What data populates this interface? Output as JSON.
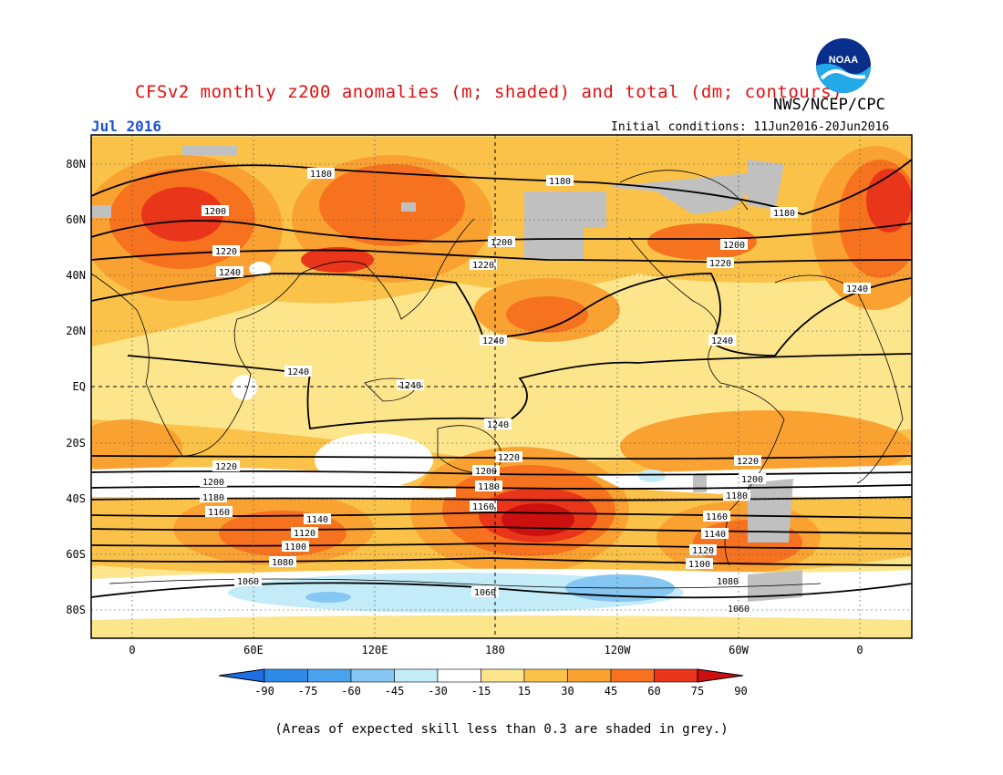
{
  "header": {
    "title": "CFSv2 monthly z200 anomalies (m; shaded) and total (dm; contours)",
    "center": "NWS/NCEP/CPC",
    "month": "Jul 2016",
    "initial_conditions": "Initial conditions: 11Jun2016-20Jun2016",
    "logo_text": "NOAA"
  },
  "axes": {
    "lat_labels": [
      "80N",
      "60N",
      "40N",
      "20N",
      "EQ",
      "20S",
      "40S",
      "60S",
      "80S"
    ],
    "lon_labels": [
      "0",
      "60E",
      "120E",
      "180",
      "120W",
      "60W",
      "0"
    ]
  },
  "colorbar": {
    "tick_labels": [
      "-90",
      "-75",
      "-60",
      "-45",
      "-30",
      "-15",
      "15",
      "30",
      "45",
      "60",
      "75",
      "90"
    ],
    "colors": [
      "#1e6ee6",
      "#2f8ae6",
      "#4ba2ec",
      "#86c6f2",
      "#c4ecf8",
      "#ffffff",
      "#fde58c",
      "#fbc24a",
      "#f9a232",
      "#f7721e",
      "#e9351a",
      "#cc1010"
    ],
    "skill_grey": "#c0c0c0"
  },
  "contour_labels": [
    "1180",
    "1200",
    "1220",
    "1240",
    "1200",
    "1220",
    "1240",
    "1180",
    "1180",
    "1200",
    "1220",
    "1240",
    "1240",
    "1240",
    "1240",
    "1240",
    "1220",
    "1220",
    "1200",
    "1200",
    "1180",
    "1180",
    "1160",
    "1160",
    "1140",
    "1120",
    "1100",
    "1080",
    "1060",
    "1220",
    "1200",
    "1180",
    "1160",
    "1140",
    "1120",
    "1100",
    "1080",
    "1060",
    "1060"
  ],
  "footnote": "(Areas of expected skill less than 0.3 are shaded in grey.)"
}
